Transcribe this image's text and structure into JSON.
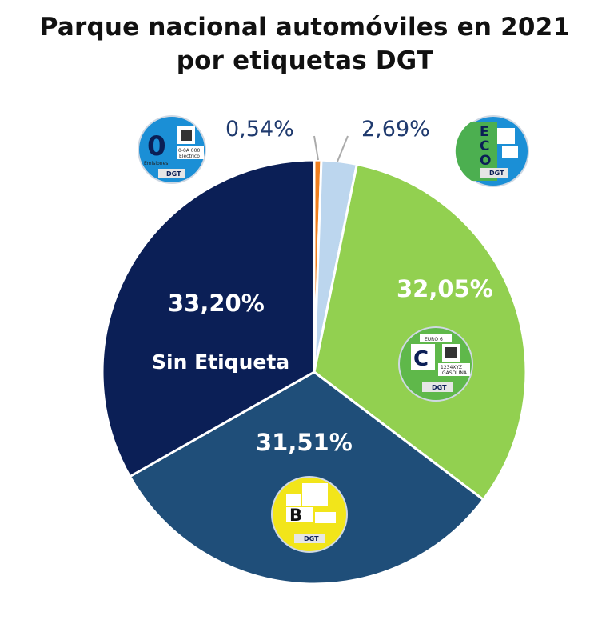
{
  "chart_data": {
    "type": "pie",
    "title": "Parque nacional automóviles en 2021",
    "subtitle": "por etiquetas DGT",
    "slices": [
      {
        "label": "0",
        "value": 0.54,
        "value_label": "0,54%",
        "color": "#f07f1e"
      },
      {
        "label": "ECO",
        "value": 2.69,
        "value_label": "2,69%",
        "color": "#bcd6ee"
      },
      {
        "label": "C",
        "value": 32.05,
        "value_label": "32,05%",
        "color": "#92d050"
      },
      {
        "label": "B",
        "value": 31.51,
        "value_label": "31,51%",
        "color": "#1f4e79"
      },
      {
        "label": "Sin Etiqueta",
        "value": 33.2,
        "value_label": "33,20%",
        "color": "#0b1f56"
      }
    ]
  },
  "badges": {
    "zero": {
      "letter": "0",
      "caption": "Emisiones",
      "code": "0-0A 000",
      "sub": "Eléctrico",
      "brand": "DGT",
      "icon": "dgt-zero-badge-icon"
    },
    "eco": {
      "letter_e": "E",
      "letter_c": "C",
      "letter_o": "O",
      "brand": "DGT",
      "icon": "dgt-eco-badge-icon"
    },
    "c": {
      "letter": "C",
      "top": "EURO 6",
      "plate": "1234XYZ",
      "fuel": "GASOLINA",
      "brand": "DGT",
      "icon": "dgt-c-badge-icon"
    },
    "b": {
      "letter": "B",
      "brand": "DGT",
      "icon": "dgt-b-badge-icon"
    }
  }
}
